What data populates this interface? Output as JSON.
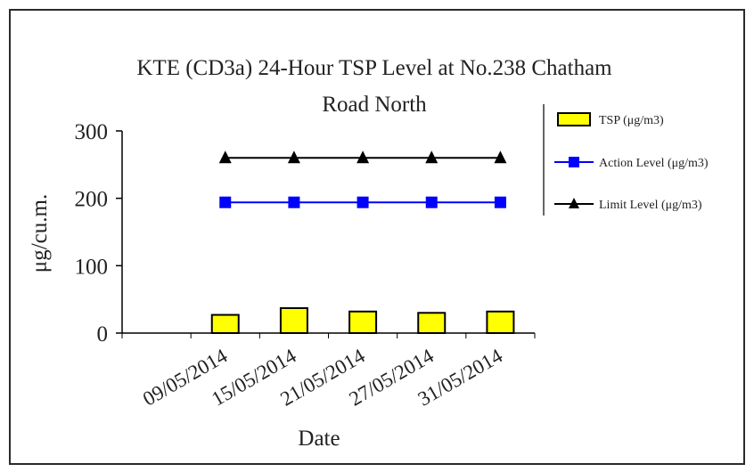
{
  "chart_data": {
    "type": "bar",
    "title_line1": "KTE  (CD3a) 24-Hour TSP Level at No.238 Chatham",
    "title_line2": "Road North",
    "xlabel": "Date",
    "ylabel": "μg/cu.m.",
    "ylim": [
      0,
      300
    ],
    "yticks": [
      0,
      100,
      200,
      300
    ],
    "categories": [
      "",
      "09/05/2014",
      "15/05/2014",
      "21/05/2014",
      "27/05/2014",
      "31/05/2014"
    ],
    "series": [
      {
        "name": "TSP (μg/m3)",
        "kind": "bar",
        "color": "#ffff00",
        "values": [
          null,
          27,
          37,
          32,
          30,
          32
        ]
      },
      {
        "name": "Action Level (μg/m3)",
        "kind": "line",
        "marker": "square",
        "color": "#0000ff",
        "values": [
          null,
          194,
          194,
          194,
          194,
          194
        ]
      },
      {
        "name": "Limit Level (μg/m3)",
        "kind": "line",
        "marker": "triangle",
        "color": "#000000",
        "values": [
          null,
          260,
          260,
          260,
          260,
          260
        ]
      }
    ],
    "legend_position": "right",
    "grid": false
  }
}
